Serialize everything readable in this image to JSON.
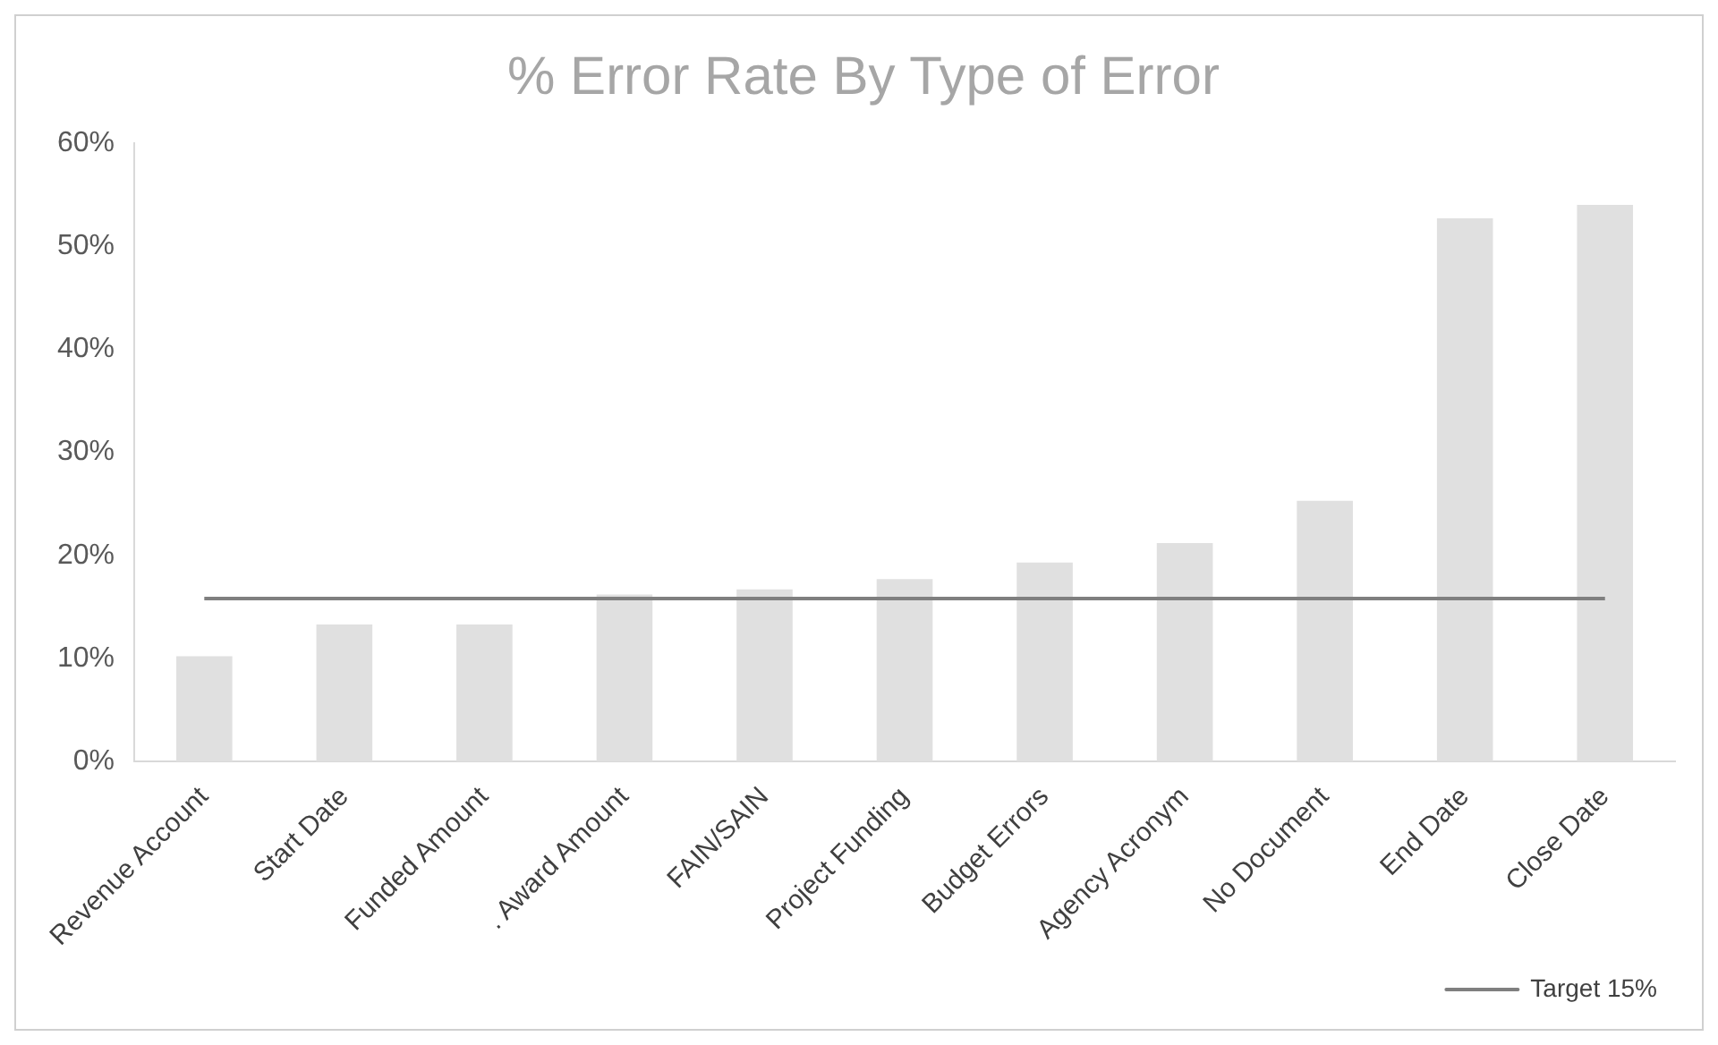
{
  "chart_data": {
    "type": "bar",
    "title": "% Error Rate By Type of Error",
    "categories": [
      "Revenue Account",
      "Start Date",
      "Funded Amount",
      ". Award Amount",
      "FAIN/SAIN",
      "Project Funding",
      "Budget Errors",
      "Agency Acronym",
      "No Document",
      "End Date",
      "Close Date"
    ],
    "series": [
      {
        "color": "#e0e0e0",
        "values": [
          10.2,
          13.3,
          13.3,
          16.2,
          16.7,
          17.7,
          19.3,
          21.2,
          25.3,
          52.7,
          54.0
        ]
      },
      {
        "type": "line",
        "name": "Target 15%",
        "color": "#7f7f7f",
        "marker": "none",
        "values": [
          15.8,
          15.8,
          15.8,
          15.8,
          15.8,
          15.8,
          15.8,
          15.8,
          15.8,
          15.8,
          15.8
        ]
      }
    ],
    "ylim": [
      0,
      60
    ],
    "yticks": [
      {
        "value": 0,
        "label": "0%"
      },
      {
        "value": 10,
        "label": "10%"
      },
      {
        "value": 20,
        "label": "20%"
      },
      {
        "value": 30,
        "label": "30%"
      },
      {
        "value": 40,
        "label": "40%"
      },
      {
        "value": 50,
        "label": "50%"
      },
      {
        "value": 60,
        "label": "60%"
      }
    ],
    "grid": false,
    "legend": "bottom right"
  }
}
